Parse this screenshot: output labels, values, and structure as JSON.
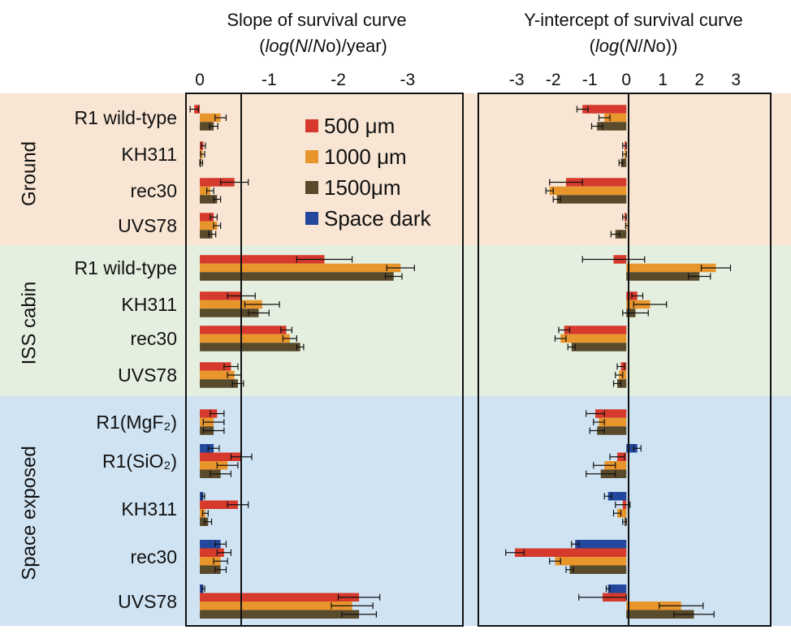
{
  "colors": {
    "s500": "#d63a2c",
    "s1000": "#e8952c",
    "s1500": "#5a4a2c",
    "dark": "#23479d",
    "ground_bg": "#f8e5d3",
    "iss_bg": "#e5efe0",
    "space_bg": "#cfe3f3"
  },
  "legend": [
    {
      "key": "s500",
      "label": "500 μm"
    },
    {
      "key": "s1000",
      "label": "1000 μm"
    },
    {
      "key": "s1500",
      "label": "1500μm"
    },
    {
      "key": "dark",
      "label": "Space dark"
    }
  ],
  "groups": [
    {
      "id": "ground",
      "label": "Ground"
    },
    {
      "id": "iss",
      "label": "ISS cabin"
    },
    {
      "id": "space",
      "label": "Space exposed"
    }
  ],
  "chart_data": [
    {
      "type": "bar",
      "orientation": "horizontal",
      "title": "Slope of survival curve",
      "title_line2": {
        "pre": "(",
        "it1": "log",
        "m1": "(",
        "it2": "N",
        "m2": "/",
        "it3": "N",
        "m3": "o)/year)"
      },
      "xlim": [
        0.2,
        -3.8
      ],
      "axis_direction": "reversed (negative values plotted to the right)",
      "ticks": [
        {
          "v": 0,
          "label": "0"
        },
        {
          "v": -1,
          "label": "-1"
        },
        {
          "v": -2,
          "label": "-2"
        },
        {
          "v": -3,
          "label": "-3"
        }
      ],
      "rows": [
        {
          "group": "ground",
          "label": "R1 wild-type",
          "bars": [
            {
              "s": "s500",
              "v": 0.08,
              "e": 0.06
            },
            {
              "s": "s1000",
              "v": -0.3,
              "e": 0.08
            },
            {
              "s": "s1500",
              "v": -0.2,
              "e": 0.06
            }
          ]
        },
        {
          "group": "ground",
          "label": "KH311",
          "bars": [
            {
              "s": "s500",
              "v": -0.05,
              "e": 0.03
            },
            {
              "s": "s1000",
              "v": -0.04,
              "e": 0.03
            },
            {
              "s": "s1500",
              "v": -0.02,
              "e": 0.02
            }
          ]
        },
        {
          "group": "ground",
          "label": "rec30",
          "bars": [
            {
              "s": "s500",
              "v": -0.5,
              "e": 0.2
            },
            {
              "s": "s1000",
              "v": -0.15,
              "e": 0.05
            },
            {
              "s": "s1500",
              "v": -0.25,
              "e": 0.05
            }
          ]
        },
        {
          "group": "ground",
          "label": "UVS78",
          "bars": [
            {
              "s": "s500",
              "v": -0.2,
              "e": 0.05
            },
            {
              "s": "s1000",
              "v": -0.25,
              "e": 0.05
            },
            {
              "s": "s1500",
              "v": -0.18,
              "e": 0.05
            }
          ]
        },
        {
          "group": "iss",
          "label": "R1 wild-type",
          "bars": [
            {
              "s": "s500",
              "v": -1.8,
              "e": 0.4
            },
            {
              "s": "s1000",
              "v": -2.9,
              "e": 0.2
            },
            {
              "s": "s1500",
              "v": -2.8,
              "e": 0.12
            }
          ]
        },
        {
          "group": "iss",
          "label": "KH311",
          "bars": [
            {
              "s": "s500",
              "v": -0.6,
              "e": 0.2
            },
            {
              "s": "s1000",
              "v": -0.9,
              "e": 0.25
            },
            {
              "s": "s1500",
              "v": -0.85,
              "e": 0.15
            }
          ]
        },
        {
          "group": "iss",
          "label": "rec30",
          "bars": [
            {
              "s": "s500",
              "v": -1.25,
              "e": 0.08
            },
            {
              "s": "s1000",
              "v": -1.3,
              "e": 0.1
            },
            {
              "s": "s1500",
              "v": -1.45,
              "e": 0.05
            }
          ]
        },
        {
          "group": "iss",
          "label": "UVS78",
          "bars": [
            {
              "s": "s500",
              "v": -0.45,
              "e": 0.1
            },
            {
              "s": "s1000",
              "v": -0.5,
              "e": 0.1
            },
            {
              "s": "s1500",
              "v": -0.55,
              "e": 0.08
            }
          ]
        },
        {
          "group": "space",
          "label": "R1(MgF₂)",
          "bars": [
            {
              "s": "s500",
              "v": -0.25,
              "e": 0.1
            },
            {
              "s": "s1000",
              "v": -0.2,
              "e": 0.15
            },
            {
              "s": "s1500",
              "v": -0.2,
              "e": 0.15
            }
          ]
        },
        {
          "group": "space",
          "label": "R1(SiO₂)",
          "bars": [
            {
              "s": "dark",
              "v": -0.2,
              "e": 0.08
            },
            {
              "s": "s500",
              "v": -0.6,
              "e": 0.15
            },
            {
              "s": "s1000",
              "v": -0.4,
              "e": 0.15
            },
            {
              "s": "s1500",
              "v": -0.3,
              "e": 0.15
            }
          ]
        },
        {
          "group": "space",
          "label": "KH311",
          "bars": [
            {
              "s": "dark",
              "v": -0.05,
              "e": 0.02
            },
            {
              "s": "s500",
              "v": -0.55,
              "e": 0.15
            },
            {
              "s": "s1000",
              "v": -0.08,
              "e": 0.04
            },
            {
              "s": "s1500",
              "v": -0.12,
              "e": 0.05
            }
          ]
        },
        {
          "group": "space",
          "label": "rec30",
          "bars": [
            {
              "s": "dark",
              "v": -0.3,
              "e": 0.08
            },
            {
              "s": "s500",
              "v": -0.35,
              "e": 0.1
            },
            {
              "s": "s1000",
              "v": -0.3,
              "e": 0.1
            },
            {
              "s": "s1500",
              "v": -0.3,
              "e": 0.08
            }
          ]
        },
        {
          "group": "space",
          "label": "UVS78",
          "bars": [
            {
              "s": "dark",
              "v": -0.05,
              "e": 0.02
            },
            {
              "s": "s500",
              "v": -2.3,
              "e": 0.3
            },
            {
              "s": "s1000",
              "v": -2.2,
              "e": 0.3
            },
            {
              "s": "s1500",
              "v": -2.3,
              "e": 0.25
            }
          ]
        }
      ]
    },
    {
      "type": "bar",
      "orientation": "horizontal",
      "title": "Y-intercept of survival curve",
      "title_line2": {
        "pre": "(",
        "it1": "log",
        "m1": "(",
        "it2": "N",
        "m2": "/",
        "it3": "N",
        "m3": "o))"
      },
      "xlim": [
        -4.05,
        3.95
      ],
      "ticks": [
        {
          "v": -3,
          "label": "-3"
        },
        {
          "v": -2,
          "label": "-2"
        },
        {
          "v": -1,
          "label": "-1"
        },
        {
          "v": 0,
          "label": "0"
        },
        {
          "v": 1,
          "label": "1"
        },
        {
          "v": 2,
          "label": "2"
        },
        {
          "v": 3,
          "label": "3"
        }
      ],
      "rows": [
        {
          "group": "ground",
          "label": "R1 wild-type",
          "bars": [
            {
              "s": "s500",
              "v": -1.2,
              "e": 0.15
            },
            {
              "s": "s1000",
              "v": -0.6,
              "e": 0.15
            },
            {
              "s": "s1500",
              "v": -0.8,
              "e": 0.15
            }
          ]
        },
        {
          "group": "ground",
          "label": "KH311",
          "bars": [
            {
              "s": "s500",
              "v": -0.05,
              "e": 0.05
            },
            {
              "s": "s1000",
              "v": -0.05,
              "e": 0.05
            },
            {
              "s": "s1500",
              "v": -0.15,
              "e": 0.05
            }
          ]
        },
        {
          "group": "ground",
          "label": "rec30",
          "bars": [
            {
              "s": "s500",
              "v": -1.65,
              "e": 0.45
            },
            {
              "s": "s1000",
              "v": -2.1,
              "e": 0.1
            },
            {
              "s": "s1500",
              "v": -1.9,
              "e": 0.1
            }
          ]
        },
        {
          "group": "ground",
          "label": "UVS78",
          "bars": [
            {
              "s": "s500",
              "v": -0.05,
              "e": 0.05
            },
            {
              "s": "s1000",
              "v": 0.02,
              "e": 0.04
            },
            {
              "s": "s1500",
              "v": -0.3,
              "e": 0.12
            }
          ]
        },
        {
          "group": "iss",
          "label": "R1 wild-type",
          "bars": [
            {
              "s": "s500",
              "v": -0.35,
              "e": 0.85
            },
            {
              "s": "s1000",
              "v": 2.45,
              "e": 0.4
            },
            {
              "s": "s1500",
              "v": 2.0,
              "e": 0.3
            }
          ]
        },
        {
          "group": "iss",
          "label": "KH311",
          "bars": [
            {
              "s": "s500",
              "v": 0.3,
              "e": 0.15
            },
            {
              "s": "s1000",
              "v": 0.65,
              "e": 0.45
            },
            {
              "s": "s1500",
              "v": 0.25,
              "e": 0.35
            }
          ]
        },
        {
          "group": "iss",
          "label": "rec30",
          "bars": [
            {
              "s": "s500",
              "v": -1.7,
              "e": 0.15
            },
            {
              "s": "s1000",
              "v": -1.8,
              "e": 0.15
            },
            {
              "s": "s1500",
              "v": -1.5,
              "e": 0.1
            }
          ]
        },
        {
          "group": "iss",
          "label": "UVS78",
          "bars": [
            {
              "s": "s500",
              "v": -0.15,
              "e": 0.1
            },
            {
              "s": "s1000",
              "v": -0.2,
              "e": 0.1
            },
            {
              "s": "s1500",
              "v": -0.25,
              "e": 0.1
            }
          ]
        },
        {
          "group": "space",
          "label": "R1(MgF₂)",
          "bars": [
            {
              "s": "s500",
              "v": -0.85,
              "e": 0.25
            },
            {
              "s": "s1000",
              "v": -0.75,
              "e": 0.15
            },
            {
              "s": "s1500",
              "v": -0.8,
              "e": 0.2
            }
          ]
        },
        {
          "group": "space",
          "label": "R1(SiO₂)",
          "bars": [
            {
              "s": "dark",
              "v": 0.3,
              "e": 0.1
            },
            {
              "s": "s500",
              "v": -0.25,
              "e": 0.2
            },
            {
              "s": "s1000",
              "v": -0.6,
              "e": 0.3
            },
            {
              "s": "s1500",
              "v": -0.7,
              "e": 0.4
            }
          ]
        },
        {
          "group": "space",
          "label": "KH311",
          "bars": [
            {
              "s": "dark",
              "v": -0.5,
              "e": 0.1
            },
            {
              "s": "s500",
              "v": -0.1,
              "e": 0.2
            },
            {
              "s": "s1000",
              "v": -0.25,
              "e": 0.1
            },
            {
              "s": "s1500",
              "v": -0.05,
              "e": 0.05
            }
          ]
        },
        {
          "group": "space",
          "label": "rec30",
          "bars": [
            {
              "s": "dark",
              "v": -1.4,
              "e": 0.1
            },
            {
              "s": "s500",
              "v": -3.05,
              "e": 0.25
            },
            {
              "s": "s1000",
              "v": -1.95,
              "e": 0.15
            },
            {
              "s": "s1500",
              "v": -1.55,
              "e": 0.1
            }
          ]
        },
        {
          "group": "space",
          "label": "UVS78",
          "bars": [
            {
              "s": "dark",
              "v": -0.5,
              "e": 0.05
            },
            {
              "s": "s500",
              "v": -0.65,
              "e": 0.65
            },
            {
              "s": "s1000",
              "v": 1.5,
              "e": 0.6
            },
            {
              "s": "s1500",
              "v": 1.85,
              "e": 0.55
            }
          ]
        }
      ]
    }
  ]
}
